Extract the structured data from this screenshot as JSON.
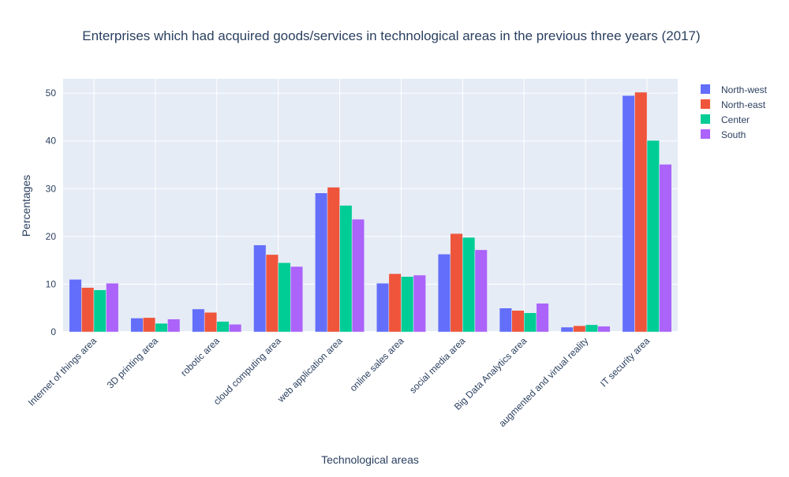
{
  "chart_data": {
    "type": "bar",
    "title": "Enterprises which had acquired goods/services in technological areas in the previous three years (2017)",
    "xlabel": "Technological areas",
    "ylabel": "Percentages",
    "ylim": [
      0,
      53
    ],
    "yticks": [
      0,
      10,
      20,
      30,
      40,
      50
    ],
    "grid": true,
    "legend_position": "top-right",
    "categories": [
      "Internet of things area",
      "3D printing area",
      "robotic area",
      "cloud computing area",
      "web application area",
      "online sales area",
      "social media area",
      "Big Data Analytics area",
      "augmented and virtual reality",
      "IT security area"
    ],
    "series": [
      {
        "name": "North-west",
        "color": "#636efa",
        "values": [
          11.0,
          2.9,
          4.8,
          18.2,
          29.1,
          10.2,
          16.3,
          5.0,
          1.0,
          49.5
        ]
      },
      {
        "name": "North-east",
        "color": "#ef553b",
        "values": [
          9.3,
          3.0,
          4.1,
          16.2,
          30.3,
          12.2,
          20.6,
          4.5,
          1.3,
          50.2
        ]
      },
      {
        "name": "Center",
        "color": "#00cc96",
        "values": [
          8.8,
          1.8,
          2.2,
          14.5,
          26.5,
          11.6,
          19.8,
          4.0,
          1.5,
          40.1
        ]
      },
      {
        "name": "South",
        "color": "#ab63fa",
        "values": [
          10.2,
          2.7,
          1.6,
          13.7,
          23.6,
          11.9,
          17.2,
          6.0,
          1.2,
          35.1
        ]
      }
    ]
  }
}
